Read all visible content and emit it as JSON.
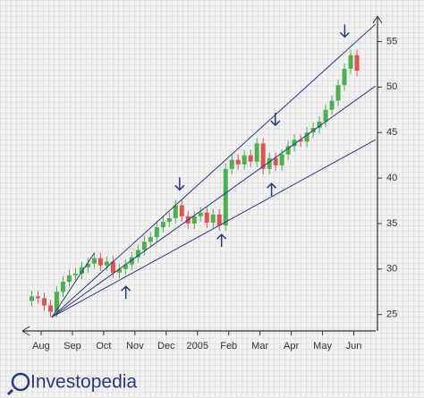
{
  "chart_data": {
    "type": "candlestick",
    "x": [
      -0.3,
      -0.1,
      0.1,
      0.3,
      0.5,
      0.7,
      0.9,
      1.1,
      1.3,
      1.5,
      1.7,
      1.9,
      2.1,
      2.3,
      2.5,
      2.7,
      2.9,
      3.1,
      3.3,
      3.5,
      3.7,
      3.9,
      4.1,
      4.3,
      4.5,
      4.7,
      4.9,
      5.1,
      5.3,
      5.5,
      5.7,
      5.9,
      6.1,
      6.3,
      6.5,
      6.7,
      6.9,
      7.1,
      7.3,
      7.5,
      7.7,
      7.9,
      8.1,
      8.3,
      8.5,
      8.7,
      8.9,
      9.1,
      9.3,
      9.5,
      9.7,
      9.9,
      10.1
    ],
    "open": [
      26.5,
      27,
      26.8,
      26,
      25.3,
      27.5,
      28.6,
      29.3,
      29.5,
      30.2,
      30.6,
      31.2,
      30.4,
      30.8,
      29.6,
      30,
      30.5,
      31.3,
      32.1,
      33,
      33.5,
      34.6,
      35.2,
      35.6,
      37,
      35.8,
      35,
      35.8,
      36.2,
      35.1,
      36,
      34.8,
      41,
      42,
      41.5,
      42.5,
      41.8,
      43.8,
      41,
      42.2,
      41.4,
      42.6,
      43.5,
      44.2,
      44,
      45,
      45.5,
      46.2,
      47.5,
      48.5,
      50.2,
      52,
      53.5
    ],
    "high": [
      27.6,
      27.6,
      27.4,
      26.6,
      28.1,
      29.2,
      29.9,
      30.1,
      30.8,
      31.2,
      31.8,
      31.8,
      31.4,
      31.4,
      30.6,
      31.1,
      31.9,
      32.7,
      33.6,
      34.1,
      35.2,
      35.8,
      36.2,
      37.6,
      37.6,
      36.4,
      36.4,
      36.8,
      36.8,
      36.6,
      36.6,
      41.6,
      42.6,
      42.6,
      43.1,
      43.1,
      44.4,
      44.4,
      42.8,
      42.8,
      43.2,
      44.1,
      44.8,
      44.8,
      45.6,
      46.1,
      46.8,
      48.1,
      49.1,
      50.8,
      52.6,
      54.1,
      54.1
    ],
    "low": [
      25.9,
      26.2,
      25.4,
      24.7,
      24.7,
      26.9,
      28,
      28.7,
      28.9,
      29.6,
      30,
      29.8,
      29.8,
      29,
      29,
      29.4,
      29.9,
      30.7,
      31.5,
      32.4,
      32.9,
      34,
      34.6,
      35,
      35.2,
      34.4,
      34.4,
      35.2,
      34.5,
      34.5,
      34.2,
      34.2,
      40.4,
      40.9,
      40.9,
      41.2,
      41.2,
      40.4,
      40.4,
      40.8,
      40.8,
      42,
      42.9,
      43.4,
      43.4,
      44.4,
      44.9,
      45.6,
      46.9,
      47.9,
      49.6,
      51.4,
      51.2
    ],
    "close": [
      27,
      26.8,
      26,
      25.3,
      27.5,
      28.6,
      29.3,
      29.5,
      30.2,
      30.6,
      31.2,
      30.4,
      30.8,
      29.6,
      30,
      30.5,
      31.3,
      32.1,
      33,
      33.5,
      34.6,
      35.2,
      35.6,
      37,
      35.8,
      35,
      35.8,
      36.2,
      35.1,
      36,
      34.8,
      41,
      42,
      41.5,
      42.5,
      41.8,
      43.8,
      41,
      42.2,
      41.4,
      42.6,
      43.5,
      44.2,
      44,
      45,
      45.5,
      46.2,
      47.5,
      48.5,
      50.2,
      52,
      53.5,
      51.8
    ],
    "up_color": "#4caf50",
    "down_color": "#e0534f",
    "line_color": "#2c3a7a",
    "trend_lines": [
      {
        "x": [
          0.34,
          1.71
        ],
        "values": [
          24.7,
          31.8
        ]
      },
      {
        "x": [
          0.34,
          10.69
        ],
        "values": [
          24.7,
          56.9
        ]
      },
      {
        "x": [
          0.34,
          10.69
        ],
        "values": [
          24.7,
          50.1
        ]
      },
      {
        "x": [
          0.34,
          10.69
        ],
        "values": [
          24.7,
          44.2
        ]
      }
    ],
    "arrows": [
      {
        "x": 9.71,
        "value": 55.5,
        "direction": "down"
      },
      {
        "x": 7.49,
        "value": 45.8,
        "direction": "down"
      },
      {
        "x": 4.43,
        "value": 38.7,
        "direction": "down"
      },
      {
        "x": 2.71,
        "value": 28.1,
        "direction": "up"
      },
      {
        "x": 5.77,
        "value": 33.8,
        "direction": "up"
      },
      {
        "x": 7.37,
        "value": 39.4,
        "direction": "up"
      }
    ],
    "xlim": [
      -0.6,
      10.7
    ],
    "xticks": [
      {
        "value": 0,
        "label": "Aug"
      },
      {
        "value": 1,
        "label": "Sep"
      },
      {
        "value": 2,
        "label": "Oct"
      },
      {
        "value": 3,
        "label": "Nov"
      },
      {
        "value": 4,
        "label": "Dec"
      },
      {
        "value": 5,
        "label": "2005"
      },
      {
        "value": 6,
        "label": "Feb"
      },
      {
        "value": 7,
        "label": "Mar"
      },
      {
        "value": 8,
        "label": "Apr"
      },
      {
        "value": 9,
        "label": "May"
      },
      {
        "value": 10,
        "label": "Jun"
      }
    ],
    "ylim": [
      23.2,
      57.6
    ],
    "yticks": [
      25,
      30,
      35,
      40,
      45,
      50,
      55
    ]
  },
  "logo": "Investopedia"
}
